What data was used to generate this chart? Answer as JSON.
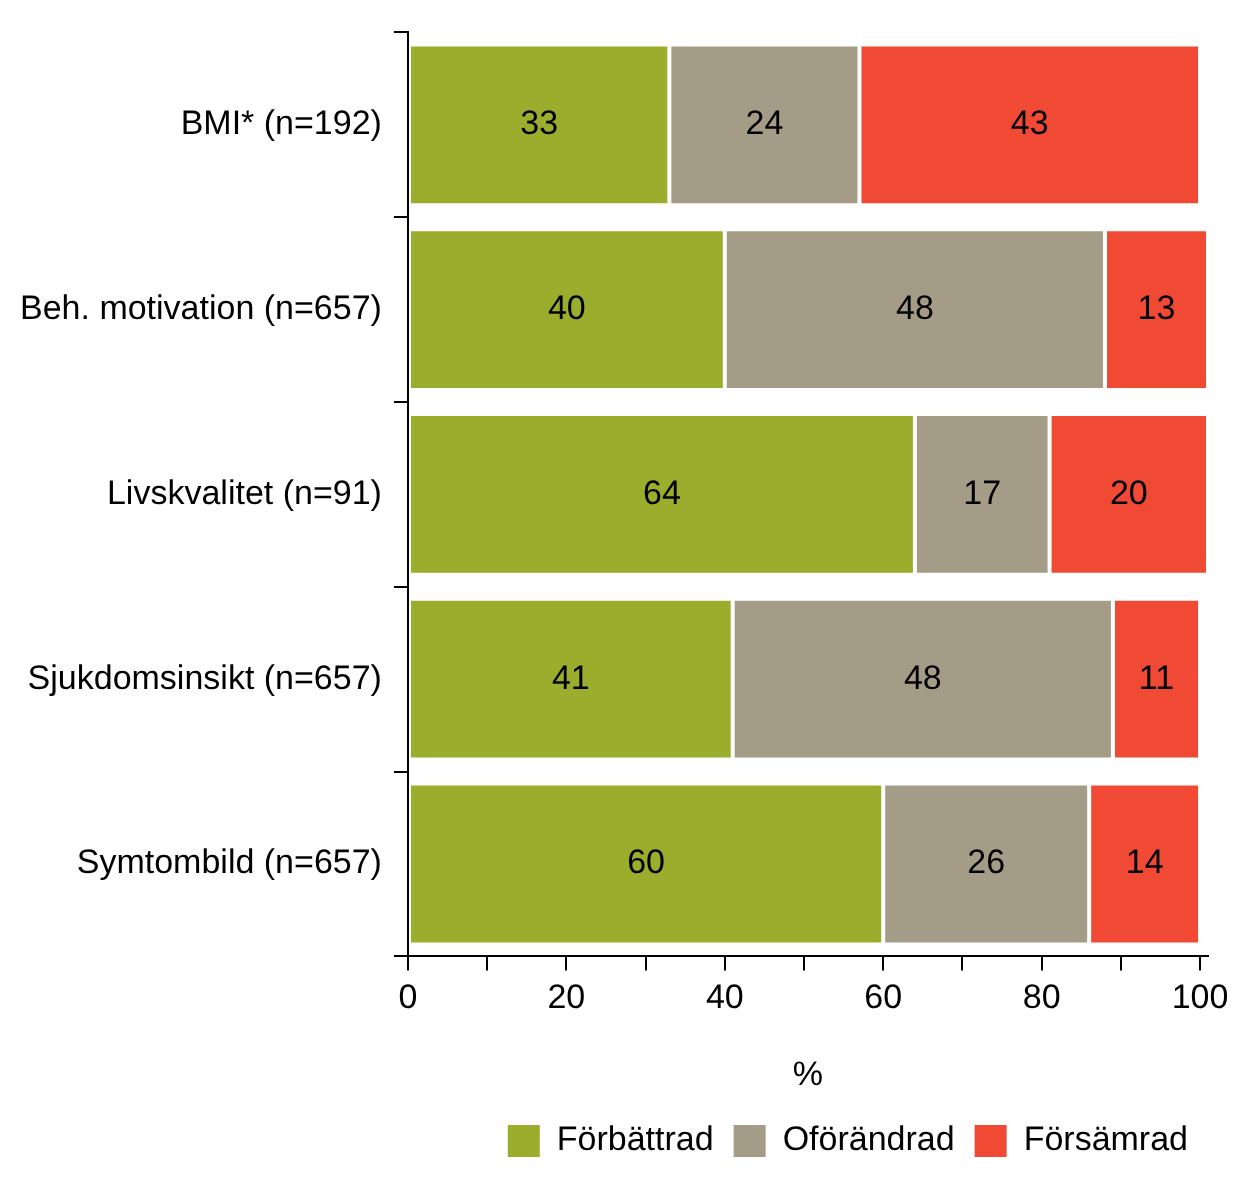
{
  "chart_data": {
    "type": "bar",
    "orientation": "horizontal",
    "stacked": true,
    "categories": [
      "BMI* (n=192)",
      "Beh. motivation (n=657)",
      "Livskvalitet (n=91)",
      "Sjukdomsinsikt (n=657)",
      "Symtombild (n=657)"
    ],
    "series": [
      {
        "name": "Förbättrad",
        "color": "#9aad2c",
        "values": [
          33,
          40,
          64,
          41,
          60
        ]
      },
      {
        "name": "Oförändrad",
        "color": "#a59c88",
        "values": [
          24,
          48,
          17,
          48,
          26
        ]
      },
      {
        "name": "Försämrad",
        "color": "#f04a35",
        "values": [
          43,
          13,
          20,
          11,
          14
        ]
      }
    ],
    "xlabel": "%",
    "xlim": [
      0,
      101
    ],
    "xticks": [
      0,
      {
        "value": 10,
        "label": null
      },
      20,
      {
        "value": 30,
        "label": null
      },
      40,
      {
        "value": 50,
        "label": null
      },
      60,
      {
        "value": 70,
        "label": null
      },
      80,
      {
        "value": 90,
        "label": null
      },
      100
    ],
    "grid": false,
    "legend": "bottom right",
    "data_labels": true
  }
}
